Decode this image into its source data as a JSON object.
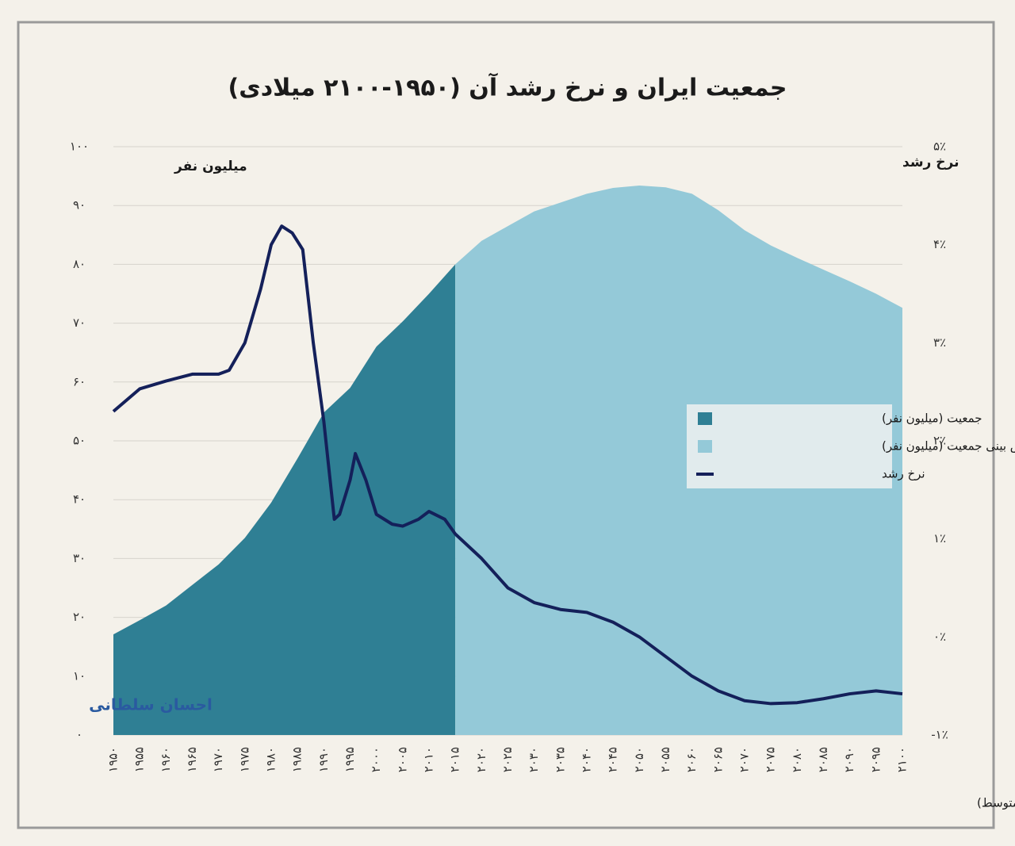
{
  "chart_data": {
    "type": "area",
    "title": "جمعیت ایران و نرخ رشد آن (۱۹۵۰-۲۱۰۰ میلادی)",
    "y_label": "میلیون نفر",
    "y2_label": "نرخ رشد",
    "source": "تحلیل و استنتاج: احسان سلطانی بر اساس داده ها و پیش بینی جمعیت سازمان ملل متحد (نرخ باروری متوسط)",
    "watermark": "احسان سلطانی",
    "xlim": [
      1950,
      2100
    ],
    "xticks": [
      {
        "value": 1950,
        "label": "۱۹۵۰"
      },
      {
        "value": 1955,
        "label": "۱۹۵۵"
      },
      {
        "value": 1960,
        "label": "۱۹۶۰"
      },
      {
        "value": 1965,
        "label": "۱۹۶۵"
      },
      {
        "value": 1970,
        "label": "۱۹۷۰"
      },
      {
        "value": 1975,
        "label": "۱۹۷۵"
      },
      {
        "value": 1980,
        "label": "۱۹۸۰"
      },
      {
        "value": 1985,
        "label": "۱۹۸۵"
      },
      {
        "value": 1990,
        "label": "۱۹۹۰"
      },
      {
        "value": 1995,
        "label": "۱۹۹۵"
      },
      {
        "value": 2000,
        "label": "۲۰۰۰"
      },
      {
        "value": 2005,
        "label": "۲۰۰۵"
      },
      {
        "value": 2010,
        "label": "۲۰۱۰"
      },
      {
        "value": 2015,
        "label": "۲۰۱۵"
      },
      {
        "value": 2020,
        "label": "۲۰۲۰"
      },
      {
        "value": 2025,
        "label": "۲۰۲۵"
      },
      {
        "value": 2030,
        "label": "۲۰۳۰"
      },
      {
        "value": 2035,
        "label": "۲۰۳۵"
      },
      {
        "value": 2040,
        "label": "۲۰۴۰"
      },
      {
        "value": 2045,
        "label": "۲۰۴۵"
      },
      {
        "value": 2050,
        "label": "۲۰۵۰"
      },
      {
        "value": 2055,
        "label": "۲۰۵۵"
      },
      {
        "value": 2060,
        "label": "۲۰۶۰"
      },
      {
        "value": 2065,
        "label": "۲۰۶۵"
      },
      {
        "value": 2070,
        "label": "۲۰۷۰"
      },
      {
        "value": 2075,
        "label": "۲۰۷۵"
      },
      {
        "value": 2080,
        "label": "۲۰۸۰"
      },
      {
        "value": 2085,
        "label": "۲۰۸۵"
      },
      {
        "value": 2090,
        "label": "۲۰۹۰"
      },
      {
        "value": 2095,
        "label": "۲۰۹۵"
      },
      {
        "value": 2100,
        "label": "۲۱۰۰"
      }
    ],
    "ylim": [
      0,
      100
    ],
    "yticks": [
      {
        "value": 0,
        "label": "۰"
      },
      {
        "value": 10,
        "label": "۱۰"
      },
      {
        "value": 20,
        "label": "۲۰"
      },
      {
        "value": 30,
        "label": "۳۰"
      },
      {
        "value": 40,
        "label": "۴۰"
      },
      {
        "value": 50,
        "label": "۵۰"
      },
      {
        "value": 60,
        "label": "۶۰"
      },
      {
        "value": 70,
        "label": "۷۰"
      },
      {
        "value": 80,
        "label": "۸۰"
      },
      {
        "value": 90,
        "label": "۹۰"
      },
      {
        "value": 100,
        "label": "۱۰۰"
      }
    ],
    "y2lim": [
      -1,
      5
    ],
    "y2ticks": [
      {
        "value": -1,
        "label": "-۱٪"
      },
      {
        "value": 0,
        "label": "۰٪"
      },
      {
        "value": 1,
        "label": "۱٪"
      },
      {
        "value": 2,
        "label": "۲٪"
      },
      {
        "value": 3,
        "label": "۳٪"
      },
      {
        "value": 4,
        "label": "۴٪"
      },
      {
        "value": 5,
        "label": "۵٪"
      }
    ],
    "grid": true,
    "series": [
      {
        "name": "جمعیت (میلیون نفر)",
        "type": "area",
        "color": "#2f7f94",
        "x": [
          1950,
          1955,
          1960,
          1965,
          1970,
          1975,
          1980,
          1985,
          1990,
          1995,
          2000,
          2005,
          2010,
          2015
        ],
        "values": [
          17.1,
          19.5,
          22,
          25.5,
          29,
          33.5,
          39.5,
          47,
          54.8,
          59,
          66,
          70.3,
          75,
          80
        ]
      },
      {
        "name": "پیش بینی جمعیت (میلیون نفر)",
        "type": "area",
        "color": "#94c9d8",
        "x": [
          2015,
          2020,
          2025,
          2030,
          2035,
          2040,
          2045,
          2050,
          2055,
          2060,
          2065,
          2070,
          2075,
          2080,
          2085,
          2090,
          2095,
          2100
        ],
        "values": [
          80,
          84,
          86.5,
          89,
          90.5,
          92,
          93,
          93.4,
          93.1,
          92,
          89.2,
          85.8,
          83.2,
          81.1,
          79.1,
          77.1,
          75,
          72.6
        ]
      },
      {
        "name": "نرخ رشد",
        "type": "line",
        "axis": "y2",
        "color": "#14205a",
        "x": [
          1950,
          1955,
          1960,
          1965,
          1970,
          1972,
          1975,
          1978,
          1980,
          1982,
          1984,
          1986,
          1988,
          1990,
          1992,
          1993,
          1995,
          1996,
          1998,
          2000,
          2003,
          2005,
          2008,
          2010,
          2013,
          2015,
          2020,
          2025,
          2030,
          2035,
          2040,
          2045,
          2050,
          2055,
          2060,
          2065,
          2070,
          2075,
          2080,
          2085,
          2090,
          2095,
          2100
        ],
        "values": [
          2.3,
          2.53,
          2.61,
          2.68,
          2.68,
          2.72,
          3.0,
          3.55,
          4.0,
          4.19,
          4.12,
          3.95,
          3.0,
          2.2,
          1.2,
          1.25,
          1.6,
          1.87,
          1.6,
          1.25,
          1.15,
          1.13,
          1.2,
          1.28,
          1.2,
          1.05,
          0.8,
          0.5,
          0.35,
          0.28,
          0.25,
          0.15,
          0.0,
          -0.2,
          -0.4,
          -0.55,
          -0.65,
          -0.68,
          -0.67,
          -0.63,
          -0.58,
          -0.55,
          -0.58
        ]
      }
    ]
  }
}
